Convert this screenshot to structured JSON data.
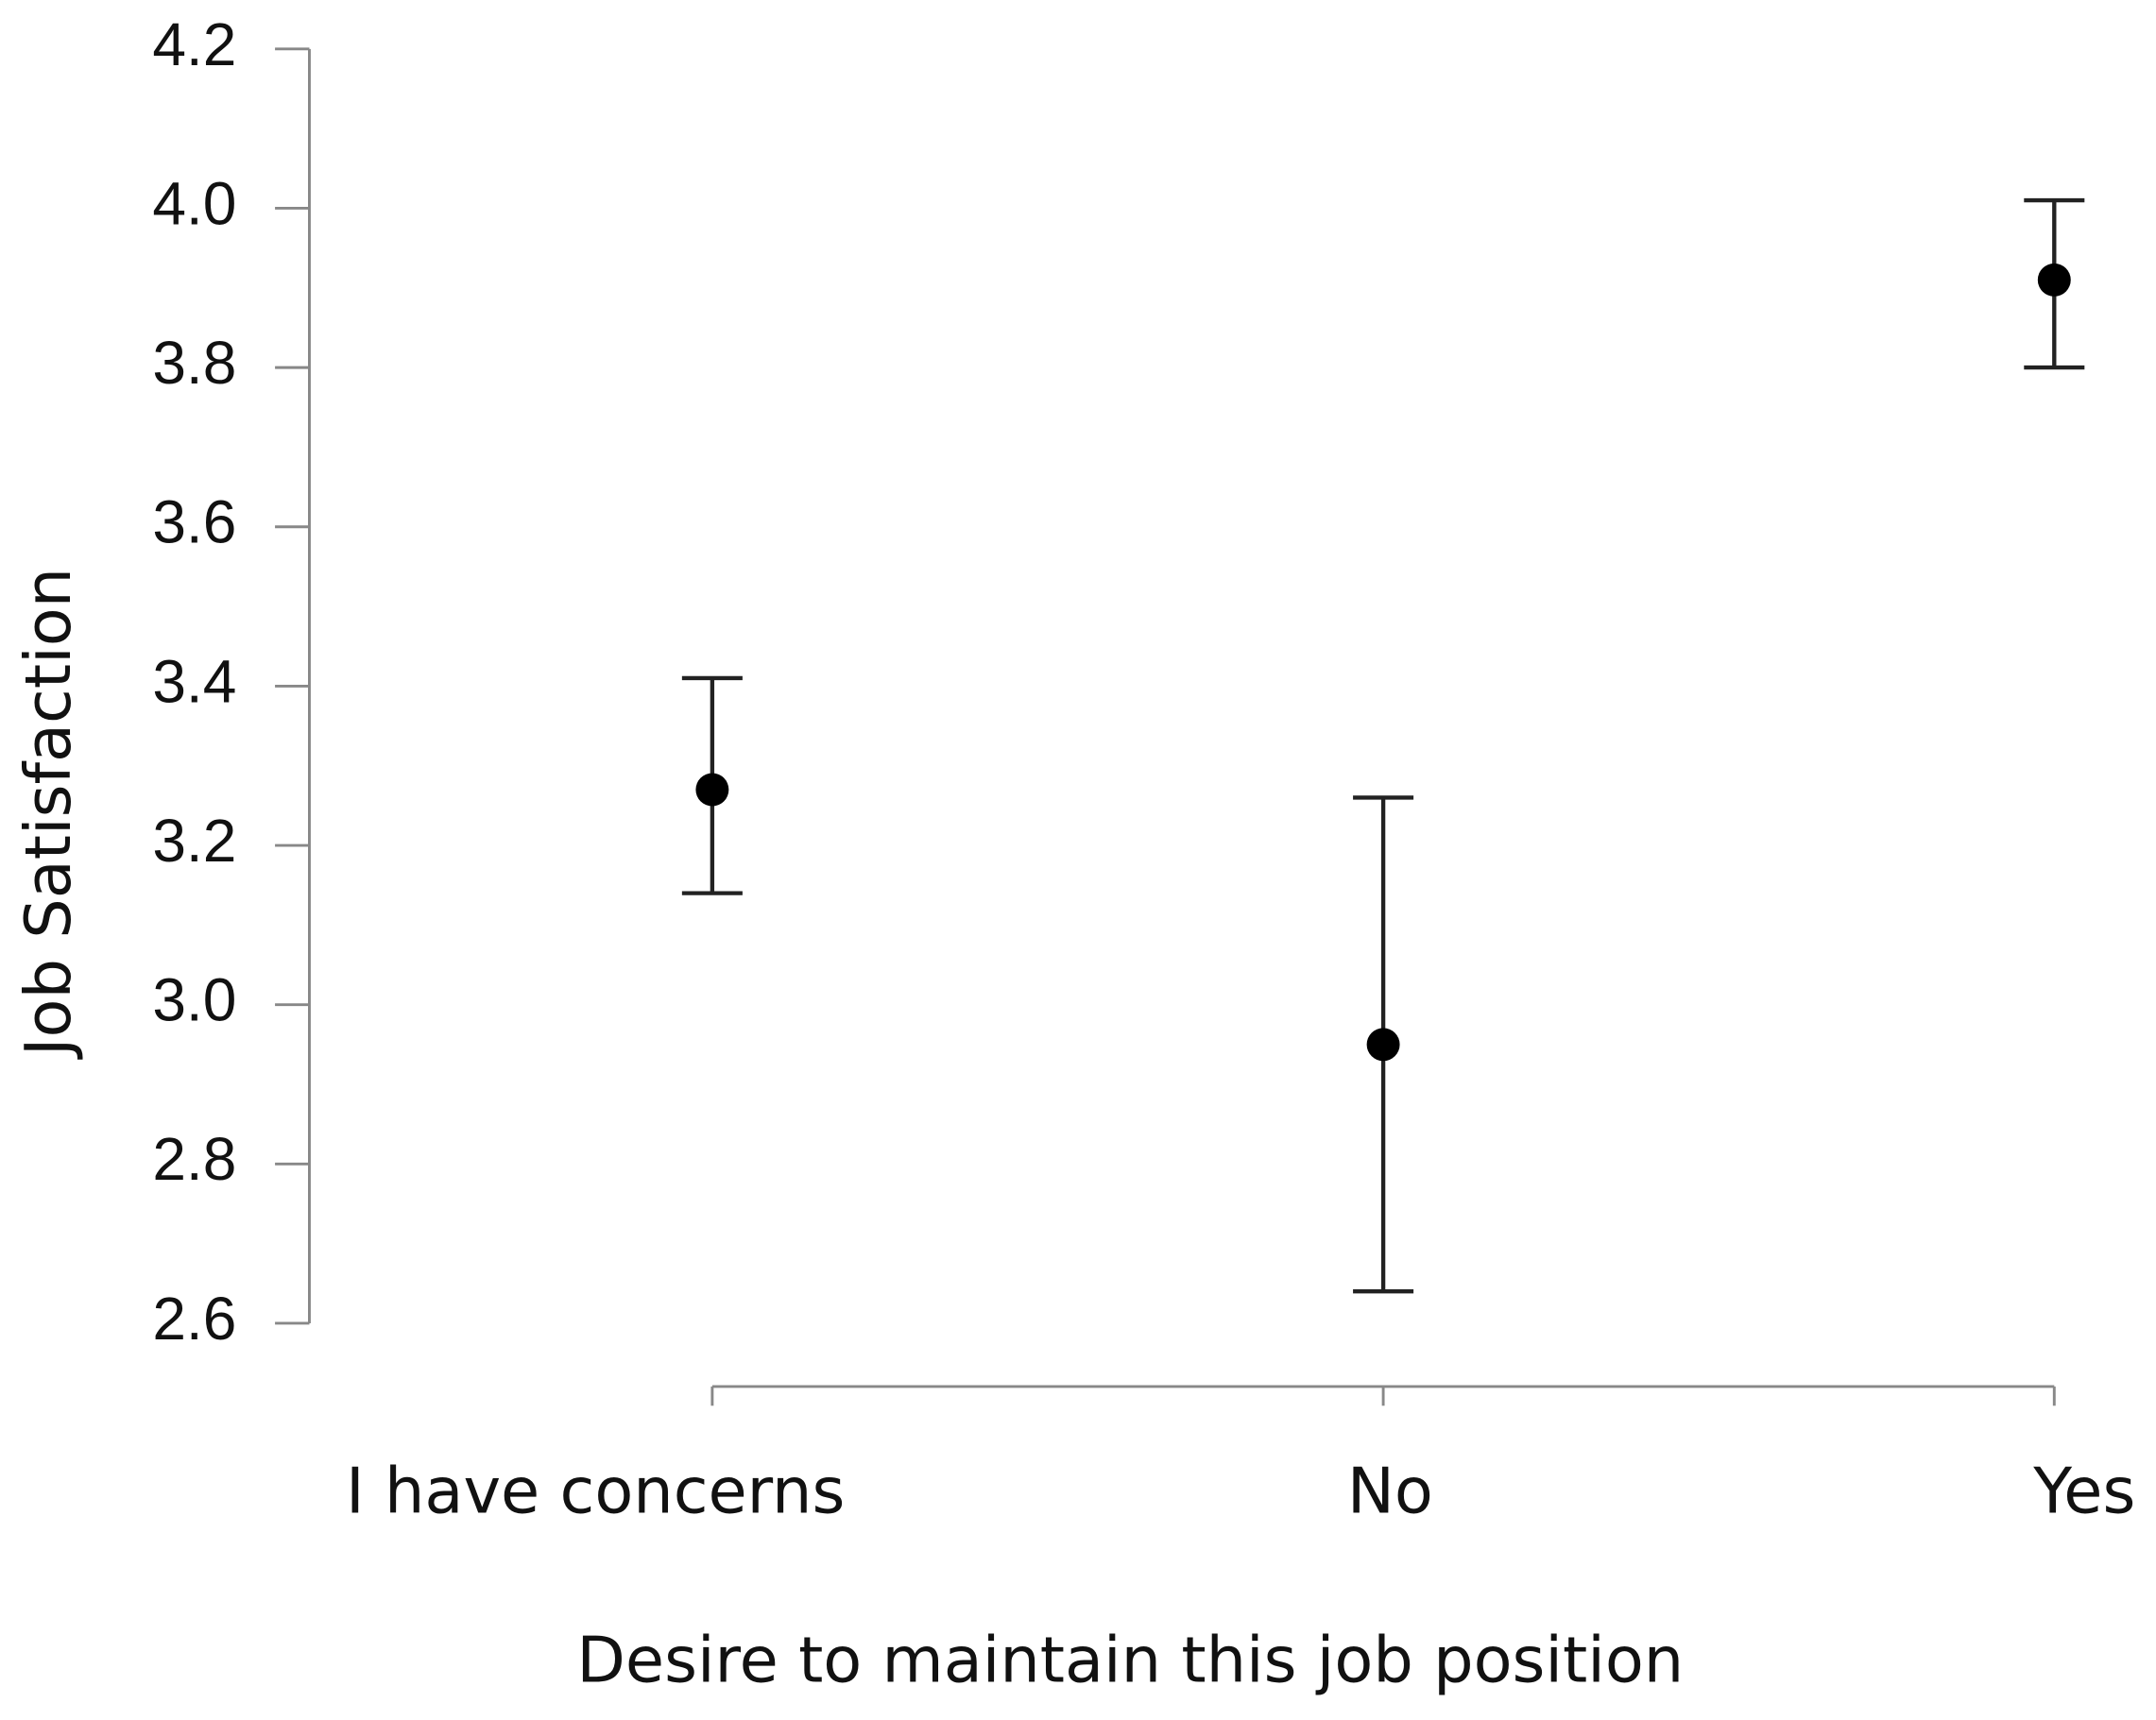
{
  "chart_data": {
    "type": "errorbar-point",
    "x_label": "Desire to maintain this job position",
    "y_label": "Job Satisfaction",
    "categories": [
      "I have concerns",
      "No",
      "Yes"
    ],
    "values": [
      3.27,
      2.95,
      3.91
    ],
    "lower": [
      3.14,
      2.64,
      3.8
    ],
    "upper": [
      3.41,
      3.26,
      4.01
    ],
    "color": "#000000",
    "ylim": [
      2.6,
      4.2
    ],
    "yticks": [
      2.6,
      2.8,
      {
        "value": 3.0,
        "label": "3.0"
      },
      3.2,
      3.4,
      3.6,
      3.8,
      {
        "value": 4.0,
        "label": "4.0"
      },
      4.2
    ]
  }
}
